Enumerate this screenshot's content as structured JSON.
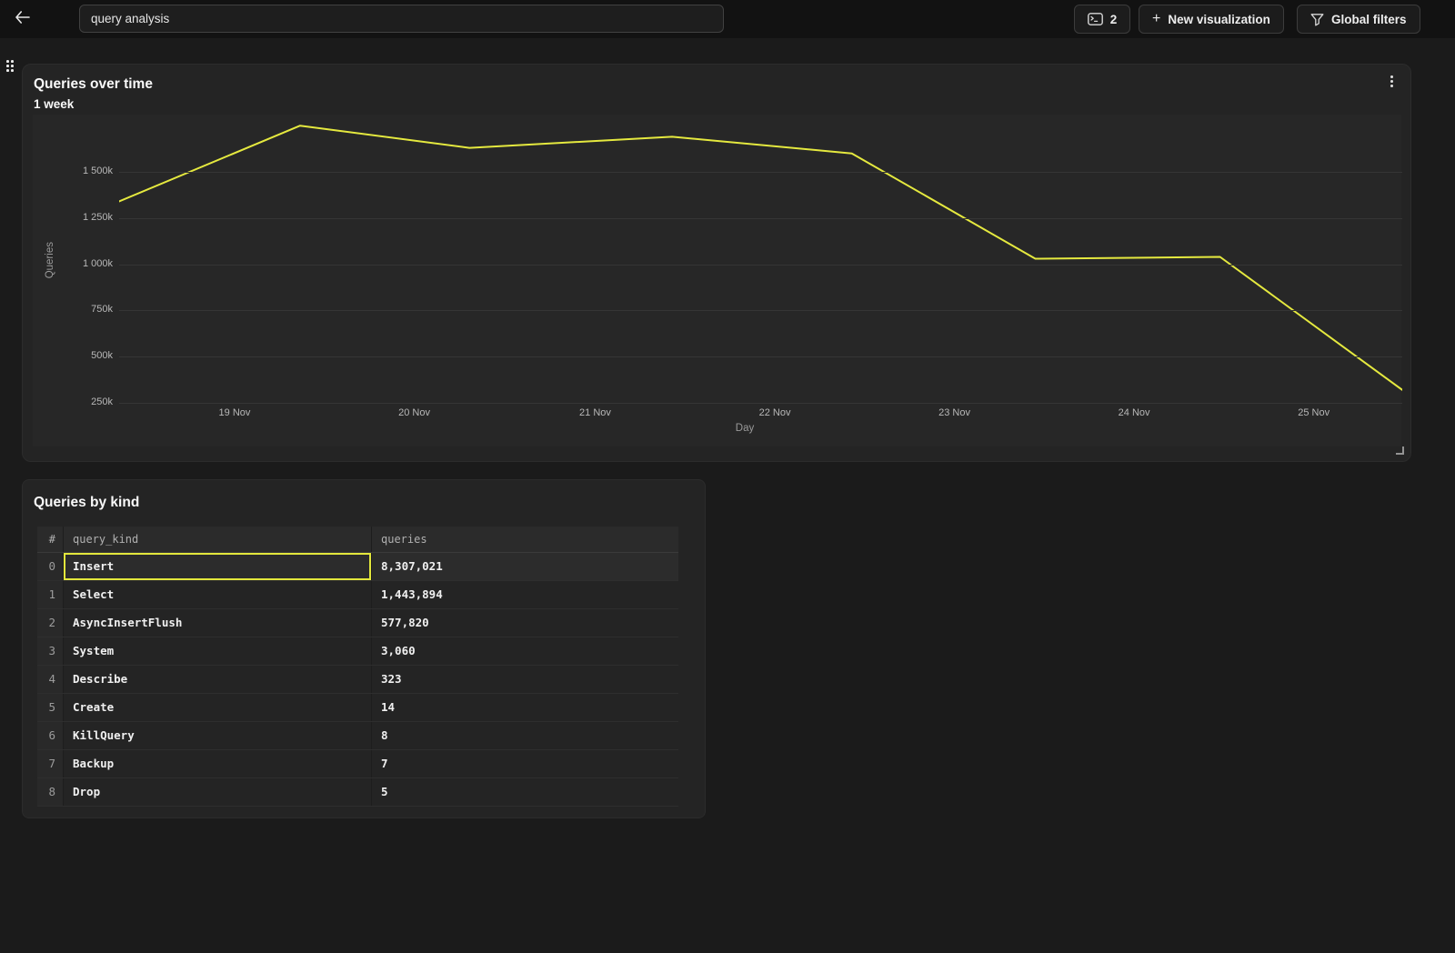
{
  "topbar": {
    "title_value": "query analysis",
    "panel_count": "2",
    "new_visualization_label": "New visualization",
    "new_visualization_plus": "+",
    "global_filters_label": "Global filters"
  },
  "icons": {
    "back": "arrow-left",
    "panel_count": "console-window",
    "new_visualization": "plus",
    "global_filters": "filter-funnel",
    "chart_menu": "kebab-vertical",
    "chart_drag": "grip-dots",
    "chart_resize": "corner-resize"
  },
  "chart_panel": {
    "title": "Queries over time",
    "subtitle": "1 week"
  },
  "chart_data": {
    "type": "line",
    "title": "Queries over time",
    "subtitle": "1 week",
    "xlabel": "Day",
    "ylabel": "Queries",
    "grid": true,
    "legend": false,
    "line_color": "#e5e93f",
    "ylim": [
      0,
      1810000
    ],
    "y_ticks": [
      {
        "label": "1 500k",
        "value": 1500000
      },
      {
        "label": "1 250k",
        "value": 1250000
      },
      {
        "label": "1 000k",
        "value": 1000000
      },
      {
        "label": "750k",
        "value": 750000
      },
      {
        "label": "500k",
        "value": 500000
      },
      {
        "label": "250k",
        "value": 250000
      }
    ],
    "x_ticks": [
      {
        "label": "19 Nov",
        "f": 0.09
      },
      {
        "label": "20 Nov",
        "f": 0.23
      },
      {
        "label": "21 Nov",
        "f": 0.371
      },
      {
        "label": "22 Nov",
        "f": 0.511
      },
      {
        "label": "23 Nov",
        "f": 0.651
      },
      {
        "label": "24 Nov",
        "f": 0.791
      },
      {
        "label": "25 Nov",
        "f": 0.931
      }
    ],
    "series": [
      {
        "name": "Queries",
        "points": [
          {
            "x": 0.0,
            "value": 1340000
          },
          {
            "x": 0.141,
            "value": 1750000
          },
          {
            "x": 0.273,
            "value": 1630000
          },
          {
            "x": 0.431,
            "value": 1690000
          },
          {
            "x": 0.571,
            "value": 1600000
          },
          {
            "x": 0.714,
            "value": 1030000
          },
          {
            "x": 0.858,
            "value": 1040000
          },
          {
            "x": 1.0,
            "value": 320000
          }
        ]
      }
    ]
  },
  "table_panel": {
    "title": "Queries by kind",
    "columns": [
      "#",
      "query_kind",
      "queries"
    ],
    "rows": [
      {
        "index": "0",
        "query_kind": "Insert",
        "queries": "8,307,021",
        "selected": true
      },
      {
        "index": "1",
        "query_kind": "Select",
        "queries": "1,443,894",
        "selected": false
      },
      {
        "index": "2",
        "query_kind": "AsyncInsertFlush",
        "queries": "577,820",
        "selected": false
      },
      {
        "index": "3",
        "query_kind": "System",
        "queries": "3,060",
        "selected": false
      },
      {
        "index": "4",
        "query_kind": "Describe",
        "queries": "323",
        "selected": false
      },
      {
        "index": "5",
        "query_kind": "Create",
        "queries": "14",
        "selected": false
      },
      {
        "index": "6",
        "query_kind": "KillQuery",
        "queries": "8",
        "selected": false
      },
      {
        "index": "7",
        "query_kind": "Backup",
        "queries": "7",
        "selected": false
      },
      {
        "index": "8",
        "query_kind": "Drop",
        "queries": "5",
        "selected": false
      }
    ]
  },
  "colors": {
    "accent_yellow": "#e5e93f",
    "selection_border": "#e3e73c",
    "page_bg": "#1b1b1b",
    "topbar_bg": "#121212",
    "panel_bg": "#242424",
    "plot_bg": "#272727",
    "gridline": "#353535"
  }
}
